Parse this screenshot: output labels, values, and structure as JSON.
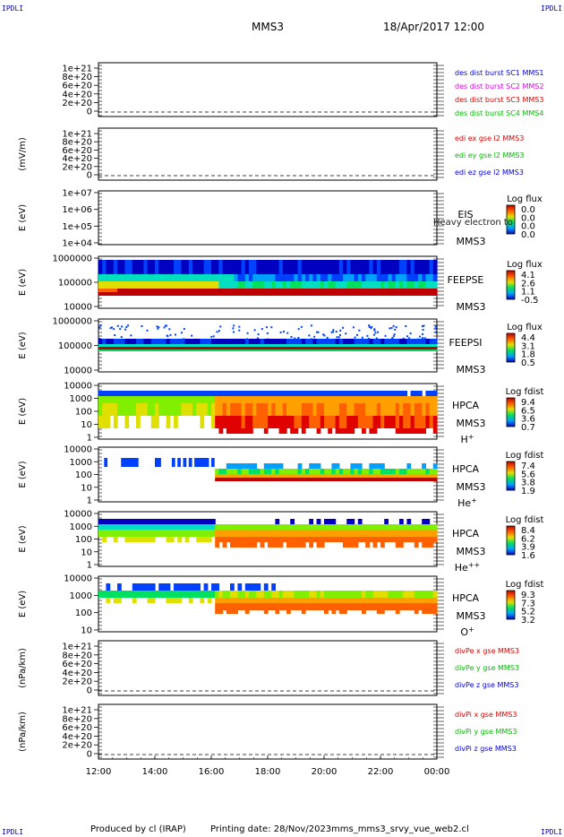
{
  "corner_tag": "IPDLI",
  "header": {
    "mission": "MMS3",
    "datetime": "18/Apr/2017 12:00"
  },
  "footer": {
    "produced_by": "Produced by cl (IRAP)",
    "printing_date": "Printing date: 28/Nov/2023",
    "file": "mms_mms3_srvy_vue_web2.cl"
  },
  "colors": {
    "c1": "#0000dd",
    "c2": "#dd00dd",
    "c3": "#dd0000",
    "c4": "#00bb00"
  },
  "chart_data": {
    "type": "heatmap",
    "x_range": [
      "12:00",
      "00:00"
    ],
    "x_ticks": [
      "12:00",
      "14:00",
      "16:00",
      "18:00",
      "20:00",
      "22:00",
      "00:00"
    ],
    "panels": [
      {
        "id": "p1",
        "kind": "line",
        "ylabel": "",
        "yticks": [
          "1e+21",
          "8e+20",
          "6e+20",
          "4e+20",
          "2e+20",
          "0"
        ],
        "legend": [
          {
            "text": "des dist burst SC1 MMS1",
            "color": "#0000dd"
          },
          {
            "text": "des dist burst SC2 MMS2",
            "color": "#dd00dd"
          },
          {
            "text": "des dist burst SC3 MMS3",
            "color": "#dd0000"
          },
          {
            "text": "des dist burst SC4 MMS4",
            "color": "#00bb00"
          }
        ]
      },
      {
        "id": "p2",
        "kind": "line",
        "ylabel": "(mV/m)",
        "yticks": [
          "1e+21",
          "8e+20",
          "6e+20",
          "4e+20",
          "2e+20",
          "0"
        ],
        "legend": [
          {
            "text": "edi ex gse l2 MMS3",
            "color": "#dd0000"
          },
          {
            "text": "edi ey gse l2 MMS3",
            "color": "#00bb00"
          },
          {
            "text": "edi ez gse l2 MMS3",
            "color": "#0000dd"
          }
        ]
      },
      {
        "id": "p3",
        "kind": "spec",
        "ylabel": "E (eV)",
        "yticks": [
          "1e+07",
          "1e+06",
          "1e+05",
          "1e+04"
        ],
        "inst": [
          "EIS",
          "MMS3"
        ],
        "overlap": "Heavy electron to",
        "cbar_title": "Log flux",
        "cbar": [
          "0.0",
          "0.0",
          "0.0",
          "0.0"
        ]
      },
      {
        "id": "p4",
        "kind": "spec",
        "ylabel": "E (eV)",
        "yticks": [
          "1000000",
          "100000",
          "10000"
        ],
        "inst": [
          "FEEPSE",
          "MMS3"
        ],
        "cbar_title": "Log flux",
        "cbar": [
          "4.1",
          "2.6",
          "1.1",
          "-0.5"
        ]
      },
      {
        "id": "p5",
        "kind": "spec",
        "ylabel": "E (eV)",
        "yticks": [
          "1000000",
          "100000",
          "10000"
        ],
        "inst": [
          "FEEPSI",
          "MMS3"
        ],
        "cbar_title": "Log flux",
        "cbar": [
          "4.4",
          "3.1",
          "1.8",
          "0.5"
        ]
      },
      {
        "id": "p6",
        "kind": "spec",
        "ylabel": "E (eV)",
        "yticks": [
          "10000",
          "1000",
          "100",
          "10",
          "1"
        ],
        "inst": [
          "HPCA",
          "MMS3",
          "H",
          "+"
        ],
        "cbar_title": "Log fdist",
        "cbar": [
          "9.4",
          "6.5",
          "3.6",
          "0.7"
        ]
      },
      {
        "id": "p7",
        "kind": "spec",
        "ylabel": "E (eV)",
        "yticks": [
          "10000",
          "1000",
          "100",
          "10",
          "1"
        ],
        "inst": [
          "HPCA",
          "MMS3",
          "He",
          "+"
        ],
        "cbar_title": "Log fdist",
        "cbar": [
          "7.4",
          "5.6",
          "3.8",
          "1.9"
        ]
      },
      {
        "id": "p8",
        "kind": "spec",
        "ylabel": "E (eV)",
        "yticks": [
          "10000",
          "1000",
          "100",
          "10",
          "1"
        ],
        "inst": [
          "HPCA",
          "MMS3",
          "He",
          "++"
        ],
        "cbar_title": "Log fdist",
        "cbar": [
          "8.4",
          "6.2",
          "3.9",
          "1.6"
        ]
      },
      {
        "id": "p9",
        "kind": "spec",
        "ylabel": "E (eV)",
        "yticks": [
          "10000",
          "1000",
          "100",
          "10"
        ],
        "inst": [
          "HPCA",
          "MMS3",
          "O",
          "+"
        ],
        "cbar_title": "Log fdist",
        "cbar": [
          "9.3",
          "7.3",
          "5.2",
          "3.2"
        ]
      },
      {
        "id": "p10",
        "kind": "line",
        "ylabel": "(nPa/km)",
        "yticks": [
          "1e+21",
          "8e+20",
          "6e+20",
          "4e+20",
          "2e+20",
          "0"
        ],
        "legend": [
          {
            "text": "divPe x gse MMS3",
            "color": "#dd0000"
          },
          {
            "text": "divPe y gse MMS3",
            "color": "#00bb00"
          },
          {
            "text": "divPe z gse MMS3",
            "color": "#0000dd"
          }
        ]
      },
      {
        "id": "p11",
        "kind": "line",
        "ylabel": "(nPa/km)",
        "yticks": [
          "1e+21",
          "8e+20",
          "6e+20",
          "4e+20",
          "2e+20",
          "0"
        ],
        "legend": [
          {
            "text": "divPi x gse MMS3",
            "color": "#dd0000"
          },
          {
            "text": "divPi y gse MMS3",
            "color": "#00bb00"
          },
          {
            "text": "divPi z gse MMS3",
            "color": "#0000dd"
          }
        ]
      }
    ]
  }
}
